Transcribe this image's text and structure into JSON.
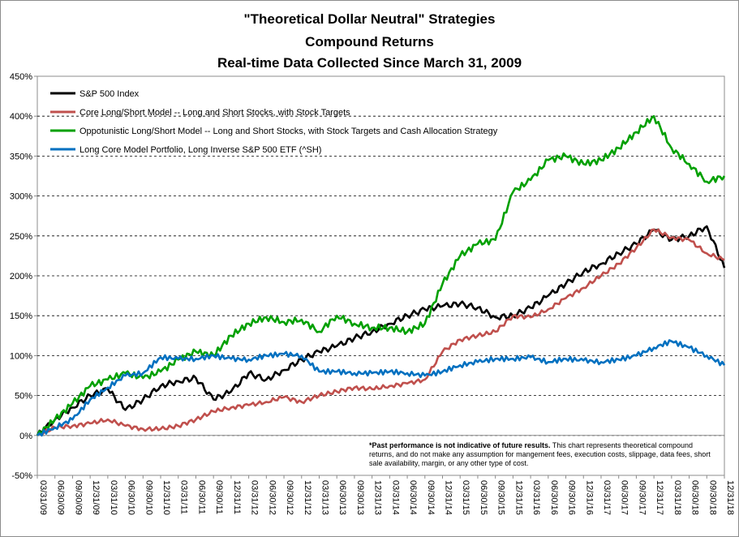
{
  "chart_data": {
    "type": "line",
    "title": "\"Theoretical Dollar Neutral\" Strategies",
    "subtitle_1": "Compound Returns",
    "subtitle_2": "Real-time Data Collected Since March 31, 2009",
    "xlabel": "",
    "ylabel": "",
    "ylim": [
      -50,
      450
    ],
    "y_ticks": [
      "-50%",
      "0%",
      "50%",
      "100%",
      "150%",
      "200%",
      "250%",
      "300%",
      "350%",
      "400%",
      "450%"
    ],
    "x_ticks": [
      "03/31/09",
      "06/30/09",
      "09/30/09",
      "12/31/09",
      "03/31/10",
      "06/30/10",
      "09/30/10",
      "12/31/10",
      "03/31/11",
      "06/30/11",
      "09/30/11",
      "12/31/11",
      "03/31/12",
      "06/30/12",
      "09/30/12",
      "12/31/12",
      "03/31/13",
      "06/30/13",
      "09/30/13",
      "12/31/13",
      "03/31/14",
      "06/30/14",
      "09/30/14",
      "12/31/14",
      "03/31/15",
      "06/30/15",
      "09/30/15",
      "12/31/15",
      "03/31/16",
      "06/30/16",
      "09/30/16",
      "12/31/16",
      "03/31/17",
      "06/30/17",
      "09/30/17",
      "12/31/17",
      "03/31/18",
      "06/30/18",
      "09/30/18",
      "12/31/18"
    ],
    "grid": true,
    "legend_position": "top-left",
    "series": [
      {
        "name": "S&P 500 Index",
        "color": "#000000",
        "values": [
          0,
          20,
          35,
          50,
          58,
          32,
          45,
          62,
          68,
          72,
          45,
          55,
          78,
          70,
          82,
          95,
          105,
          112,
          122,
          130,
          140,
          150,
          158,
          162,
          165,
          160,
          148,
          150,
          160,
          175,
          190,
          205,
          215,
          228,
          240,
          258,
          245,
          250,
          262,
          210
        ]
      },
      {
        "name": "Core Long/Short Model -- Long and Short Stocks, with Stock Targets",
        "color": "#c0504d",
        "values": [
          0,
          10,
          12,
          15,
          20,
          12,
          8,
          8,
          12,
          20,
          30,
          35,
          38,
          42,
          48,
          42,
          50,
          55,
          60,
          58,
          62,
          65,
          70,
          105,
          120,
          125,
          130,
          150,
          148,
          158,
          172,
          185,
          200,
          215,
          235,
          258,
          248,
          245,
          228,
          220
        ]
      },
      {
        "name": "Oppotunistic Long/Short Model -- Long and Short Stocks, with Stock Targets and Cash Allocation Strategy",
        "color": "#00a000",
        "values": [
          0,
          20,
          40,
          62,
          70,
          78,
          72,
          80,
          95,
          105,
          100,
          125,
          140,
          148,
          142,
          145,
          130,
          150,
          140,
          135,
          135,
          130,
          140,
          190,
          225,
          240,
          245,
          305,
          320,
          345,
          350,
          340,
          345,
          360,
          380,
          400,
          360,
          340,
          318,
          325
        ]
      },
      {
        "name": "Long Core Model Portfolio, Long Inverse S&P 500 ETF (^SH)",
        "color": "#0070c0",
        "values": [
          0,
          10,
          20,
          45,
          60,
          75,
          78,
          98,
          96,
          96,
          100,
          96,
          95,
          100,
          102,
          100,
          80,
          80,
          78,
          78,
          80,
          78,
          75,
          80,
          88,
          92,
          96,
          96,
          98,
          92,
          96,
          94,
          92,
          95,
          100,
          110,
          118,
          110,
          100,
          88
        ]
      }
    ],
    "annotation": {
      "bold_text": "*Past performance is not indicative of future results.",
      "text": "This chart represents theoretical compound returns, and do not make any assumption for mangement fees, execution costs, slippage, data fees, short sale availability, margin, or any other type of cost."
    }
  }
}
